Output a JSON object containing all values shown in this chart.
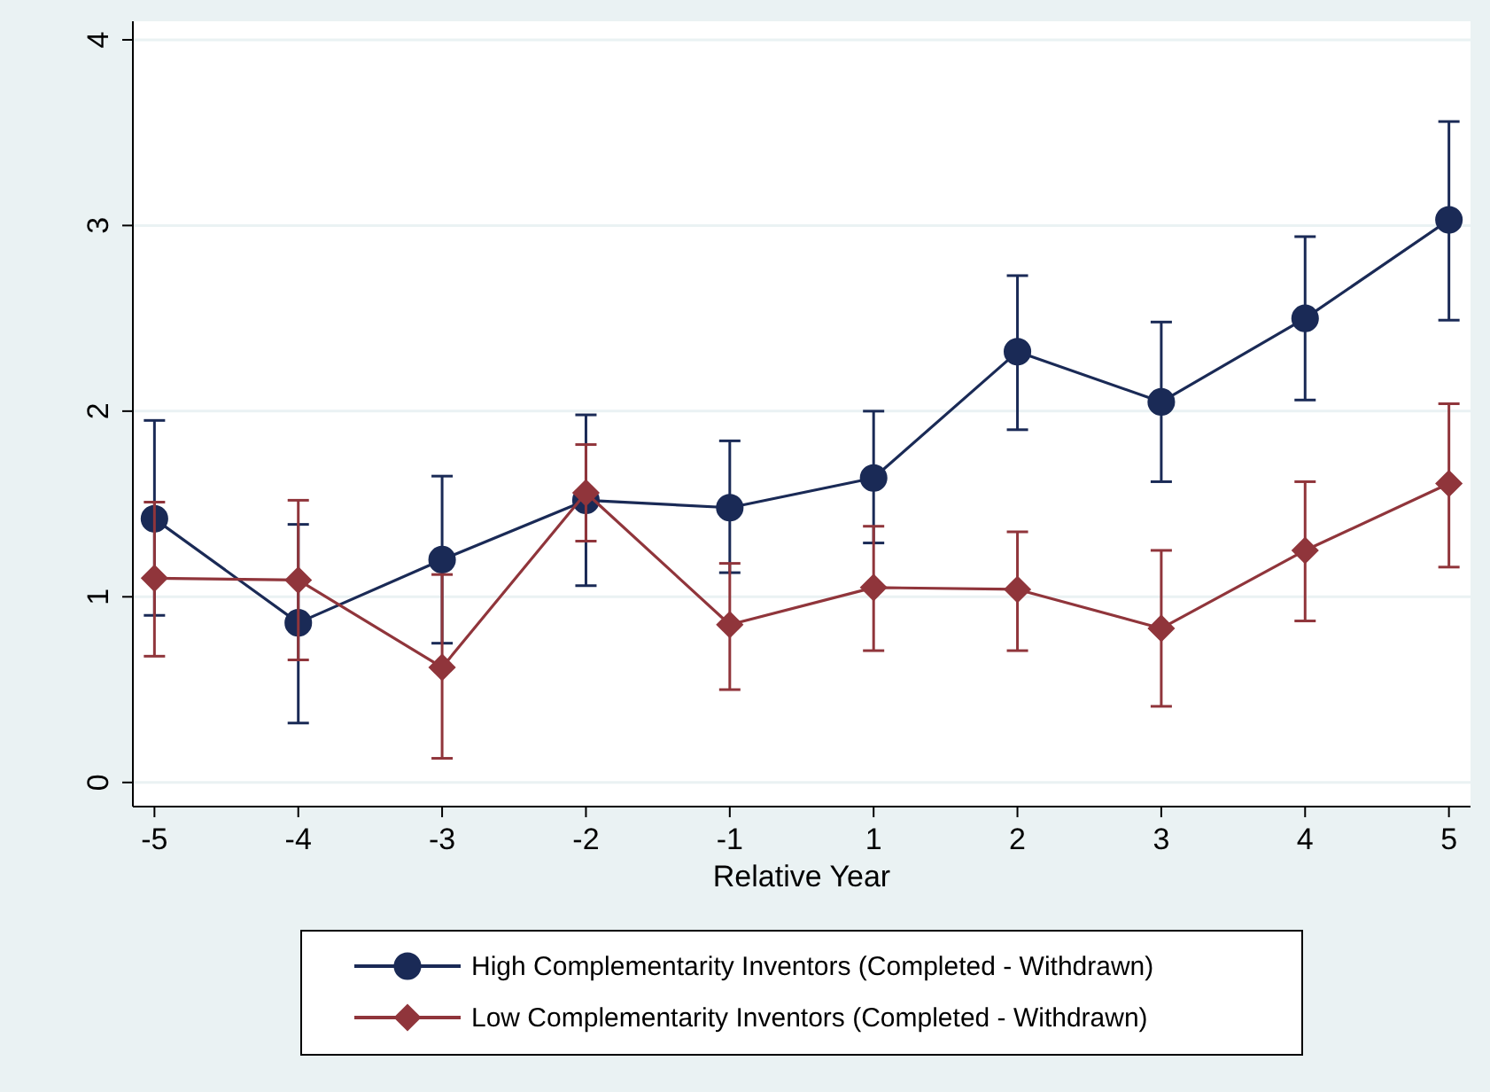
{
  "chart_data": {
    "type": "line",
    "xlabel": "Relative Year",
    "categories": [
      "-5",
      "-4",
      "-3",
      "-2",
      "-1",
      "1",
      "2",
      "3",
      "4",
      "5"
    ],
    "series": [
      {
        "name": "High Complementarity Inventors (Completed - Withdrawn)",
        "color": "#1a2a56",
        "marker": "circle",
        "values": [
          1.42,
          0.86,
          1.2,
          1.52,
          1.48,
          1.64,
          2.32,
          2.05,
          2.5,
          3.03
        ],
        "errors": [
          [
            0.9,
            1.95
          ],
          [
            0.32,
            1.39
          ],
          [
            0.75,
            1.65
          ],
          [
            1.06,
            1.98
          ],
          [
            1.13,
            1.84
          ],
          [
            1.29,
            2.0
          ],
          [
            1.9,
            2.73
          ],
          [
            1.62,
            2.48
          ],
          [
            2.06,
            2.94
          ],
          [
            2.49,
            3.56
          ]
        ]
      },
      {
        "name": "Low Complementarity Inventors (Completed - Withdrawn)",
        "color": "#90353b",
        "marker": "diamond",
        "values": [
          1.1,
          1.09,
          0.62,
          1.56,
          0.85,
          1.05,
          1.04,
          0.83,
          1.25,
          1.61
        ],
        "errors": [
          [
            0.68,
            1.51
          ],
          [
            0.66,
            1.52
          ],
          [
            0.13,
            1.12
          ],
          [
            1.3,
            1.82
          ],
          [
            0.5,
            1.18
          ],
          [
            0.71,
            1.38
          ],
          [
            0.71,
            1.35
          ],
          [
            0.41,
            1.25
          ],
          [
            0.87,
            1.62
          ],
          [
            1.16,
            2.04
          ]
        ]
      }
    ],
    "ylim": [
      -0.13,
      4.1
    ],
    "yticks": [
      0,
      1,
      2,
      3,
      4
    ],
    "grid": "y",
    "legend": "bottom",
    "line_style": "solid"
  }
}
